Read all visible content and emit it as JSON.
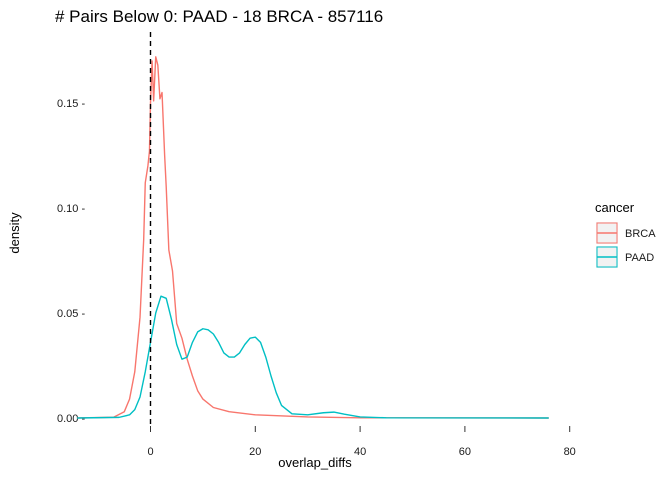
{
  "chart_data": {
    "type": "line",
    "title": "# Pairs Below 0: PAAD - 18 BRCA - 857116",
    "xlabel": "overlap_diffs",
    "ylabel": "density",
    "xlim": [
      -15,
      80
    ],
    "ylim": [
      0,
      0.18
    ],
    "x_ticks": [
      0,
      20,
      40,
      60,
      80
    ],
    "x_tick_labels": [
      "0",
      "20",
      "40",
      "60",
      "80"
    ],
    "y_ticks": [
      0.0,
      0.05,
      0.1,
      0.15
    ],
    "y_tick_labels": [
      "0.00 -",
      "0.05 -",
      "0.10 -",
      "0.15 -"
    ],
    "reference_line": {
      "x": 0,
      "style": "dashed"
    },
    "grid": false,
    "legend": {
      "title": "cancer",
      "position": "right",
      "entries": [
        {
          "label": "BRCA",
          "color": "#F8766D"
        },
        {
          "label": "PAAD",
          "color": "#00BFC4"
        }
      ]
    },
    "series": [
      {
        "name": "BRCA",
        "color": "#F8766D",
        "points": [
          [
            -14,
            0
          ],
          [
            -7,
            0.0004
          ],
          [
            -5,
            0.003
          ],
          [
            -4,
            0.009
          ],
          [
            -3,
            0.022
          ],
          [
            -2,
            0.048
          ],
          [
            -1.3,
            0.085
          ],
          [
            -1,
            0.112
          ],
          [
            -0.5,
            0.12
          ],
          [
            -0.2,
            0.127
          ],
          [
            0,
            0.15
          ],
          [
            0.3,
            0.17
          ],
          [
            0.6,
            0.151
          ],
          [
            1,
            0.172
          ],
          [
            1.4,
            0.168
          ],
          [
            1.8,
            0.152
          ],
          [
            2.2,
            0.155
          ],
          [
            2.7,
            0.125
          ],
          [
            3,
            0.11
          ],
          [
            3.5,
            0.08
          ],
          [
            4.2,
            0.07
          ],
          [
            5,
            0.045
          ],
          [
            6,
            0.038
          ],
          [
            7,
            0.028
          ],
          [
            8,
            0.02
          ],
          [
            9,
            0.013
          ],
          [
            10,
            0.009
          ],
          [
            12,
            0.005
          ],
          [
            15,
            0.003
          ],
          [
            20,
            0.0015
          ],
          [
            30,
            0.0005
          ],
          [
            40,
            0.0001
          ],
          [
            76,
            0
          ]
        ]
      },
      {
        "name": "PAAD",
        "color": "#00BFC4",
        "points": [
          [
            -14,
            0
          ],
          [
            -6,
            0.0003
          ],
          [
            -4,
            0.0015
          ],
          [
            -3,
            0.004
          ],
          [
            -2,
            0.01
          ],
          [
            -1,
            0.022
          ],
          [
            0,
            0.036
          ],
          [
            1,
            0.05
          ],
          [
            2,
            0.058
          ],
          [
            3,
            0.057
          ],
          [
            4,
            0.047
          ],
          [
            5,
            0.035
          ],
          [
            6,
            0.028
          ],
          [
            7,
            0.029
          ],
          [
            8,
            0.036
          ],
          [
            9,
            0.041
          ],
          [
            10,
            0.0425
          ],
          [
            11,
            0.042
          ],
          [
            12,
            0.04
          ],
          [
            13,
            0.036
          ],
          [
            14,
            0.031
          ],
          [
            15,
            0.029
          ],
          [
            16,
            0.029
          ],
          [
            17,
            0.031
          ],
          [
            18,
            0.035
          ],
          [
            19,
            0.038
          ],
          [
            20,
            0.0385
          ],
          [
            21,
            0.036
          ],
          [
            22,
            0.029
          ],
          [
            23,
            0.02
          ],
          [
            24,
            0.012
          ],
          [
            25,
            0.006
          ],
          [
            27,
            0.002
          ],
          [
            30,
            0.0015
          ],
          [
            33,
            0.0025
          ],
          [
            35,
            0.0028
          ],
          [
            37,
            0.0018
          ],
          [
            40,
            0.0005
          ],
          [
            45,
            0.0001
          ],
          [
            76,
            0
          ]
        ]
      }
    ]
  }
}
